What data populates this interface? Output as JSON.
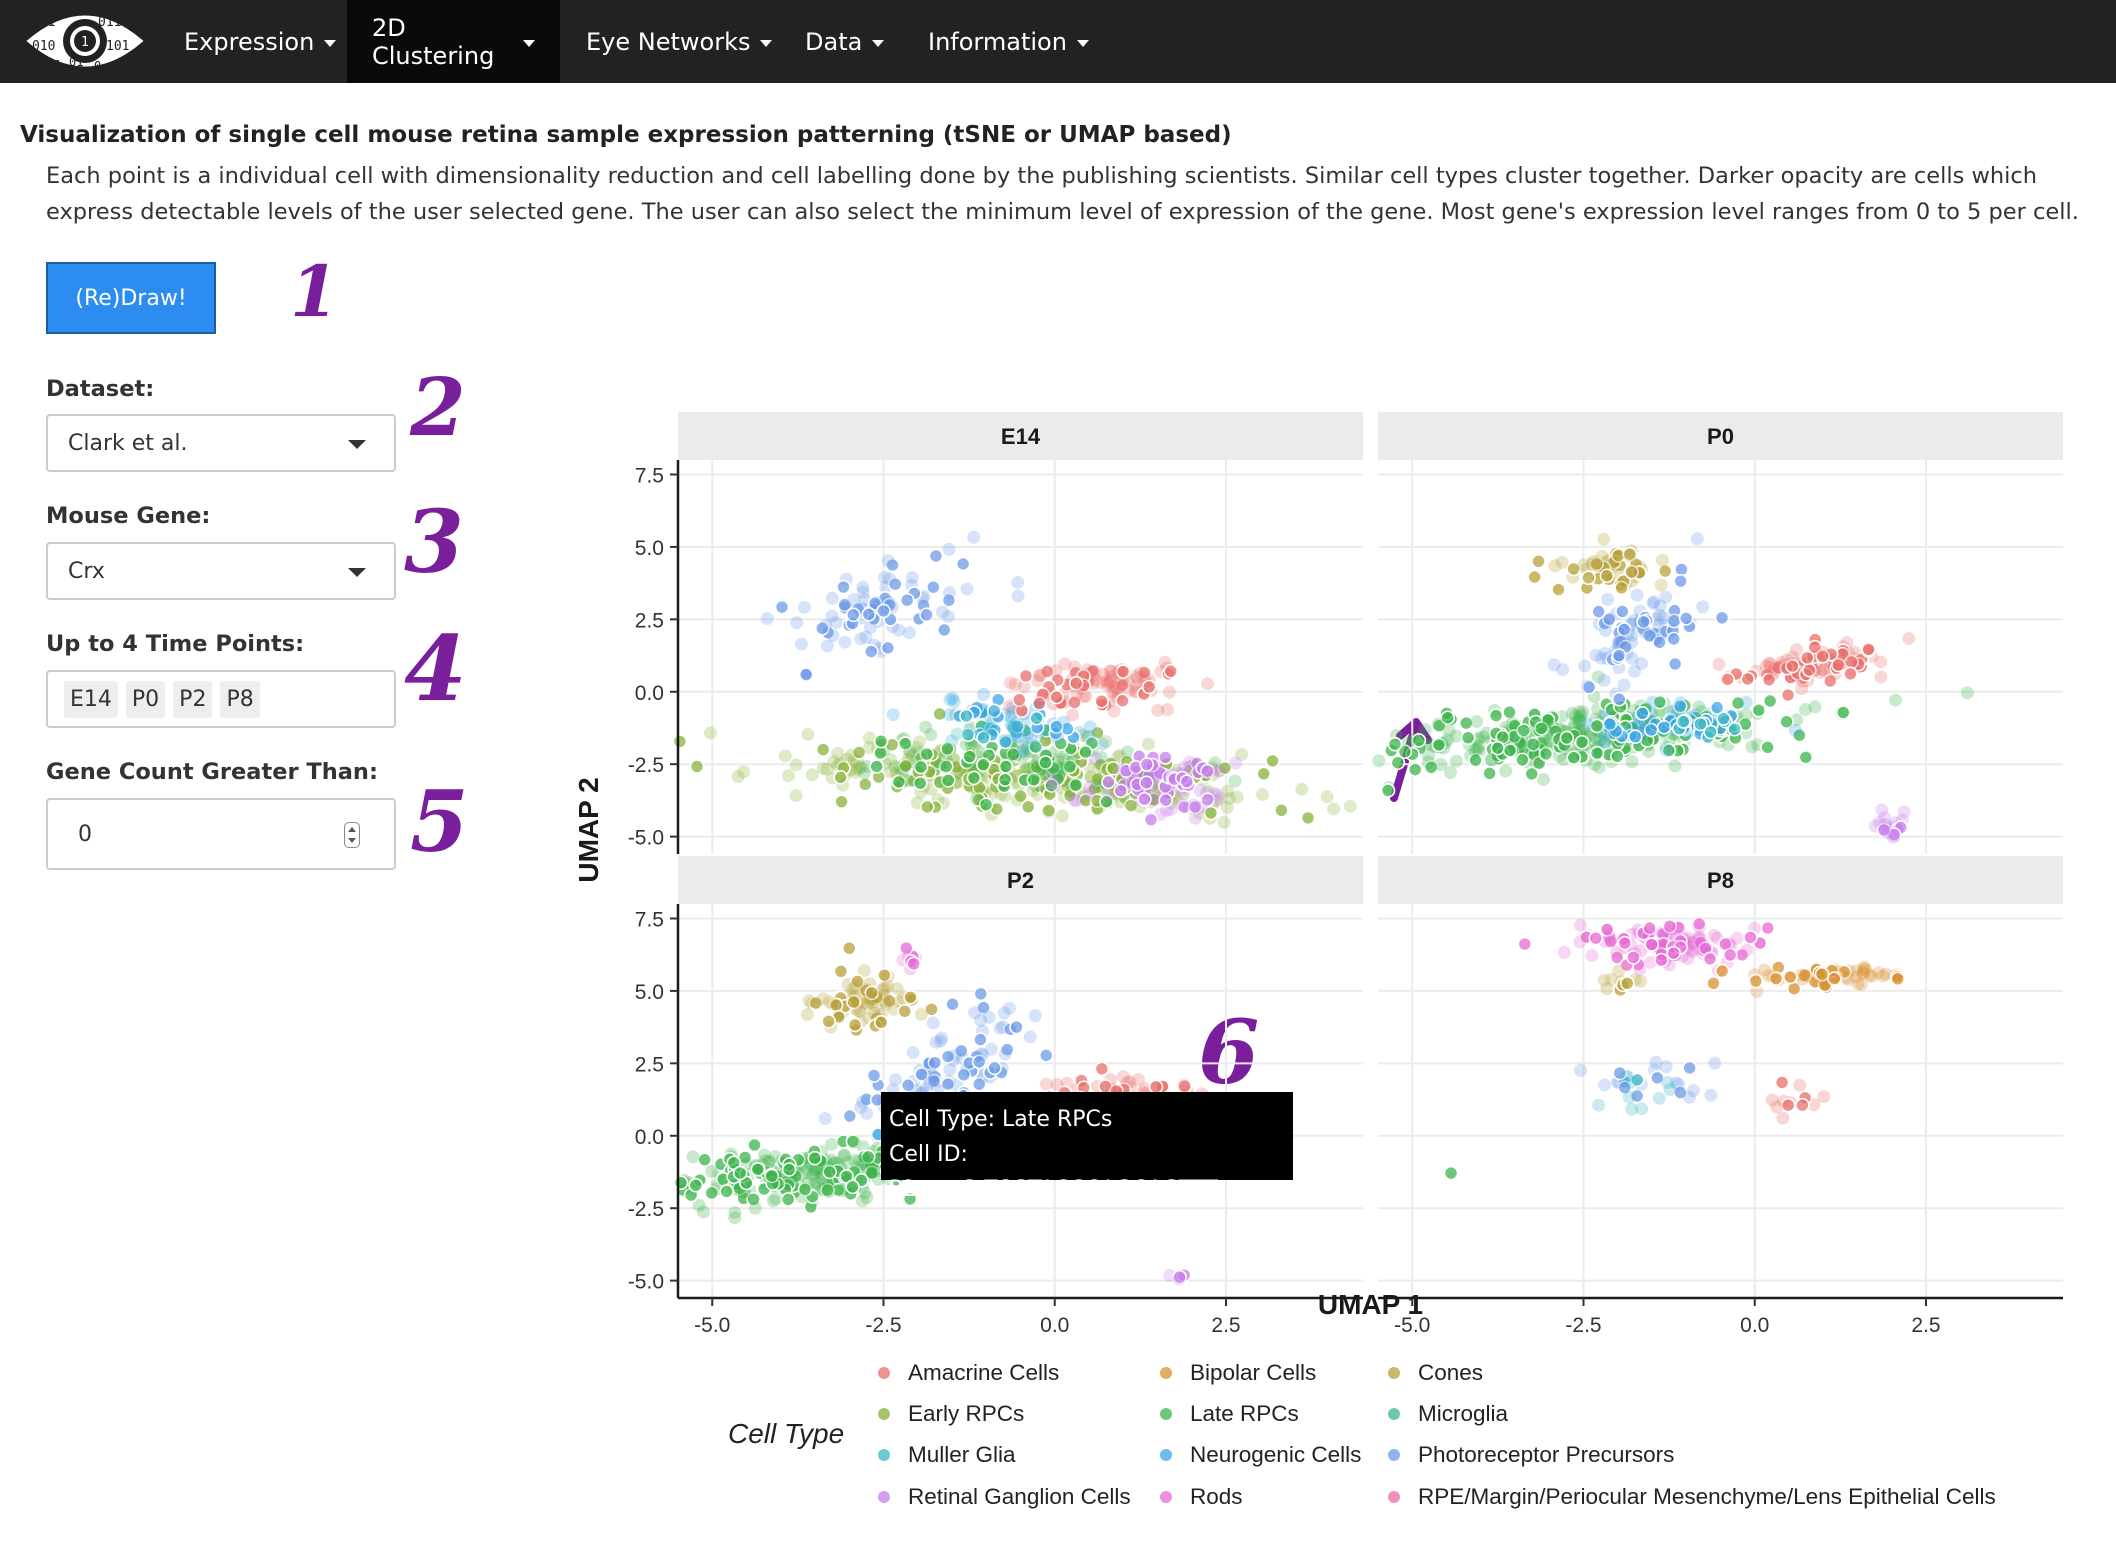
{
  "navbar": {
    "items": [
      {
        "label": "Expression"
      },
      {
        "label": "2D Clustering",
        "active": true
      },
      {
        "label": "Eye Networks"
      },
      {
        "label": "Data"
      },
      {
        "label": "Information"
      }
    ],
    "logo_digits": [
      "001",
      "0110",
      "010",
      "101",
      "01",
      "1",
      "01",
      "0"
    ]
  },
  "page": {
    "title": "Visualization of single cell mouse retina sample expression patterning (tSNE or UMAP based)",
    "description": "Each point is a individual cell with dimensionality reduction and cell labelling done by the publishing scientists. Similar cell types cluster together. Darker opacity are cells which express detectable levels of the user selected gene. The user can also select the minimum level of expression of the gene. Most gene's expression level ranges from 0 to 5 per cell."
  },
  "controls": {
    "draw_button": "(Re)Draw!",
    "dataset_label": "Dataset:",
    "dataset_value": "Clark et al.",
    "gene_label": "Mouse Gene:",
    "gene_value": "Crx",
    "timepoints_label": "Up to 4 Time Points:",
    "timepoints": [
      "E14",
      "P0",
      "P2",
      "P8"
    ],
    "gene_count_label": "Gene Count Greater Than:",
    "gene_count_value": "0"
  },
  "annotations": [
    "1",
    "2",
    "3",
    "4",
    "5",
    "6"
  ],
  "tooltip": {
    "line1": "Cell Type: Late RPCs",
    "line2": "Cell ID: P2_rep3.TCGTACCCAGCAGTTT"
  },
  "colors": {
    "Amacrine Cells": "#e8706b",
    "Bipolar Cells": "#d99032",
    "Cones": "#b8a03a",
    "Early RPCs": "#87b33b",
    "Late RPCs": "#3cb44b",
    "Microglia": "#3cb78f",
    "Muller Glia": "#3cb8c6",
    "Neurogenic Cells": "#3ba5e6",
    "Photoreceptor Precursors": "#6d9be8",
    "Retinal Ganglion Cells": "#c77dec",
    "Rods": "#e569d4",
    "RPE/Margin/Periocular Mesenchyme/Lens Epithelial Cells": "#ec6aa8"
  },
  "chart_data": {
    "type": "scatter",
    "facets": [
      "E14",
      "P0",
      "P2",
      "P8"
    ],
    "xlabel": "UMAP 1",
    "ylabel": "UMAP 2",
    "xticks": [
      "-5.0",
      "-2.5",
      "0.0",
      "2.5"
    ],
    "yticks": [
      "7.5",
      "5.0",
      "2.5",
      "0.0",
      "-2.5",
      "-5.0"
    ],
    "xlim": [
      -5.5,
      4.5
    ],
    "ylim": [
      -5.6,
      8.0
    ],
    "grid": true,
    "legend_title": "Cell Type",
    "legend_position": "bottom",
    "legend": [
      [
        "Amacrine Cells",
        "Bipolar Cells",
        "Cones"
      ],
      [
        "Early RPCs",
        "Late RPCs",
        "Microglia"
      ],
      [
        "Muller Glia",
        "Neurogenic Cells",
        "Photoreceptor Precursors"
      ],
      [
        "Retinal Ganglion Cells",
        "Rods",
        "RPE/Margin/Periocular Mesenchyme/Lens Epithelial Cells"
      ]
    ],
    "clusters": {
      "E14": [
        {
          "type": "Early RPCs",
          "cx": -0.3,
          "cy": -2.9,
          "sx": 1.7,
          "sy": 0.55,
          "n": 360,
          "rot": -8
        },
        {
          "type": "Late RPCs",
          "cx": -0.8,
          "cy": -2.4,
          "sx": 1.1,
          "sy": 0.55,
          "n": 110,
          "rot": -8
        },
        {
          "type": "Photoreceptor Precursors",
          "cx": -2.6,
          "cy": 2.8,
          "sx": 0.45,
          "sy": 1.0,
          "n": 90,
          "rot": -35
        },
        {
          "type": "Neurogenic Cells",
          "cx": -0.6,
          "cy": -1.0,
          "sx": 0.7,
          "sy": 0.35,
          "n": 60,
          "rot": -20
        },
        {
          "type": "Amacrine Cells",
          "cx": 0.6,
          "cy": 0.2,
          "sx": 0.65,
          "sy": 0.45,
          "n": 110,
          "rot": 25
        },
        {
          "type": "Retinal Ganglion Cells",
          "cx": 1.5,
          "cy": -3.1,
          "sx": 0.55,
          "sy": 0.5,
          "n": 110,
          "rot": 0
        },
        {
          "type": "Muller Glia",
          "cx": -0.9,
          "cy": -1.3,
          "sx": 0.4,
          "sy": 0.3,
          "n": 20,
          "rot": 0
        }
      ],
      "P0": [
        {
          "type": "Late RPCs",
          "cx": -2.6,
          "cy": -1.5,
          "sx": 1.5,
          "sy": 0.5,
          "n": 380,
          "rot": 12
        },
        {
          "type": "Cones",
          "cx": -2.0,
          "cy": 4.2,
          "sx": 0.5,
          "sy": 0.35,
          "n": 60,
          "rot": -20
        },
        {
          "type": "Photoreceptor Precursors",
          "cx": -1.7,
          "cy": 2.0,
          "sx": 0.35,
          "sy": 0.9,
          "n": 90,
          "rot": -20
        },
        {
          "type": "Neurogenic Cells",
          "cx": -1.2,
          "cy": -1.1,
          "sx": 0.6,
          "sy": 0.3,
          "n": 60,
          "rot": 10
        },
        {
          "type": "Amacrine Cells",
          "cx": 0.8,
          "cy": 0.9,
          "sx": 0.6,
          "sy": 0.3,
          "n": 110,
          "rot": 25
        },
        {
          "type": "Retinal Ganglion Cells",
          "cx": 2.0,
          "cy": -4.5,
          "sx": 0.12,
          "sy": 0.3,
          "n": 18,
          "rot": 0
        },
        {
          "type": "Muller Glia",
          "cx": -0.8,
          "cy": -1.2,
          "sx": 0.3,
          "sy": 0.3,
          "n": 14,
          "rot": 0
        }
      ],
      "P2": [
        {
          "type": "Late RPCs",
          "cx": -3.6,
          "cy": -1.3,
          "sx": 1.0,
          "sy": 0.5,
          "n": 260,
          "rot": 18
        },
        {
          "type": "Cones",
          "cx": -2.8,
          "cy": 4.6,
          "sx": 0.45,
          "sy": 0.5,
          "n": 80,
          "rot": -10
        },
        {
          "type": "Photoreceptor Precursors",
          "cx": -1.5,
          "cy": 2.0,
          "sx": 0.55,
          "sy": 1.0,
          "n": 110,
          "rot": -20
        },
        {
          "type": "Neurogenic Cells",
          "cx": -1.2,
          "cy": 0.1,
          "sx": 0.55,
          "sy": 0.3,
          "n": 40,
          "rot": 0
        },
        {
          "type": "Amacrine Cells",
          "cx": 0.9,
          "cy": 1.3,
          "sx": 0.5,
          "sy": 0.4,
          "n": 110,
          "rot": 20
        },
        {
          "type": "Rods",
          "cx": -2.1,
          "cy": 6.0,
          "sx": 0.12,
          "sy": 0.25,
          "n": 8,
          "rot": 0
        },
        {
          "type": "Retinal Ganglion Cells",
          "cx": 1.9,
          "cy": -4.8,
          "sx": 0.15,
          "sy": 0.15,
          "n": 4,
          "rot": 0
        }
      ],
      "P8": [
        {
          "type": "Rods",
          "cx": -1.3,
          "cy": 6.6,
          "sx": 0.6,
          "sy": 0.35,
          "n": 120,
          "rot": -5
        },
        {
          "type": "Bipolar Cells",
          "cx": 1.2,
          "cy": 5.5,
          "sx": 0.55,
          "sy": 0.2,
          "n": 60,
          "rot": 5
        },
        {
          "type": "Cones",
          "cx": -2.0,
          "cy": 5.2,
          "sx": 0.2,
          "sy": 0.2,
          "n": 10,
          "rot": 0
        },
        {
          "type": "Photoreceptor Precursors",
          "cx": -1.4,
          "cy": 1.9,
          "sx": 0.5,
          "sy": 0.4,
          "n": 22,
          "rot": 0
        },
        {
          "type": "Muller Glia",
          "cx": -1.8,
          "cy": 1.3,
          "sx": 0.45,
          "sy": 0.35,
          "n": 10,
          "rot": 0
        },
        {
          "type": "Amacrine Cells",
          "cx": 0.5,
          "cy": 1.3,
          "sx": 0.3,
          "sy": 0.3,
          "n": 12,
          "rot": 0
        },
        {
          "type": "Late RPCs",
          "cx": -4.4,
          "cy": -1.2,
          "sx": 0.05,
          "sy": 0.05,
          "n": 1,
          "rot": 0
        }
      ]
    }
  }
}
